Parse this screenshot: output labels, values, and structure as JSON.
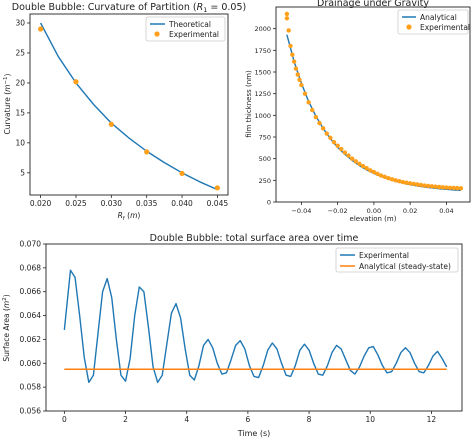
{
  "chart_data": [
    {
      "type": "line",
      "title": "Double Bubble: Curvature of Partition ($R_1$ = 0.05)",
      "xlabel": "R_f (m)",
      "ylabel": "Curvature (m^-1)",
      "xlim": [
        0.0185,
        0.0465
      ],
      "ylim": [
        1.3,
        31.5
      ],
      "xticks": [
        "0.020",
        "0.025",
        "0.030",
        "0.035",
        "0.040",
        "0.045"
      ],
      "yticks": [
        "5",
        "10",
        "15",
        "20",
        "25",
        "30"
      ],
      "legend_position": "top-right",
      "series": [
        {
          "name": "Theoretical",
          "kind": "line",
          "color": "#1f77b4",
          "x": [
            0.02,
            0.0225,
            0.025,
            0.0275,
            0.03,
            0.0325,
            0.035,
            0.0375,
            0.04,
            0.0425,
            0.045
          ],
          "y": [
            30.0,
            24.4,
            20.0,
            16.4,
            13.3,
            10.8,
            8.6,
            6.7,
            5.0,
            3.5,
            2.2
          ]
        },
        {
          "name": "Experimental",
          "kind": "scatter",
          "color": "#ff9f1a",
          "x": [
            0.02,
            0.025,
            0.03,
            0.035,
            0.04,
            0.045
          ],
          "y": [
            29.0,
            20.2,
            13.1,
            8.5,
            4.9,
            2.5
          ]
        }
      ]
    },
    {
      "type": "scatter",
      "title": "Drainage under Gravity",
      "xlabel": "elevation (m)",
      "ylabel": "film thickness (nm)",
      "xlim": [
        -0.054,
        0.053
      ],
      "ylim": [
        0,
        2250
      ],
      "xticks": [
        "-0.04",
        "-0.02",
        "0.00",
        "0.02",
        "0.04"
      ],
      "yticks": [
        "0",
        "250",
        "500",
        "750",
        "1000",
        "1250",
        "1500",
        "1750",
        "2000"
      ],
      "legend_position": "top-right",
      "series": [
        {
          "name": "Analytical",
          "kind": "line",
          "color": "#1f77b4",
          "x": [
            -0.048,
            -0.044,
            -0.04,
            -0.036,
            -0.032,
            -0.028,
            -0.024,
            -0.02,
            -0.016,
            -0.012,
            -0.008,
            -0.004,
            0.0,
            0.004,
            0.008,
            0.012,
            0.016,
            0.02,
            0.024,
            0.028,
            0.032,
            0.036,
            0.04,
            0.044,
            0.048
          ],
          "y": [
            1930,
            1620,
            1370,
            1160,
            990,
            850,
            730,
            630,
            550,
            480,
            420,
            370,
            330,
            295,
            265,
            240,
            218,
            200,
            185,
            172,
            162,
            153,
            146,
            140,
            135
          ]
        },
        {
          "name": "Experimental",
          "kind": "scatter",
          "color": "#ff9f1a",
          "x": [
            -0.048,
            -0.048,
            -0.047,
            -0.046,
            -0.045,
            -0.044,
            -0.043,
            -0.042,
            -0.041,
            -0.04,
            -0.038,
            -0.036,
            -0.034,
            -0.032,
            -0.03,
            -0.028,
            -0.026,
            -0.024,
            -0.022,
            -0.02,
            -0.018,
            -0.016,
            -0.014,
            -0.012,
            -0.01,
            -0.008,
            -0.006,
            -0.004,
            -0.002,
            0.0,
            0.002,
            0.004,
            0.006,
            0.008,
            0.01,
            0.012,
            0.014,
            0.016,
            0.018,
            0.02,
            0.022,
            0.024,
            0.026,
            0.028,
            0.03,
            0.032,
            0.034,
            0.036,
            0.038,
            0.04,
            0.042,
            0.044,
            0.046,
            0.048
          ],
          "y": [
            2170,
            2120,
            1980,
            1800,
            1700,
            1620,
            1540,
            1470,
            1410,
            1350,
            1250,
            1150,
            1060,
            980,
            910,
            850,
            790,
            740,
            690,
            650,
            610,
            570,
            535,
            500,
            470,
            440,
            415,
            390,
            365,
            345,
            325,
            305,
            290,
            275,
            262,
            250,
            240,
            230,
            222,
            215,
            208,
            202,
            196,
            190,
            185,
            181,
            177,
            173,
            170,
            167,
            164,
            162,
            160,
            158
          ]
        }
      ]
    },
    {
      "type": "line",
      "title": "Double Bubble: total surface area over time",
      "xlabel": "Time (s)",
      "ylabel": "Surface Area (m^2)",
      "xlim": [
        -0.6,
        13.0
      ],
      "ylim": [
        0.056,
        0.07
      ],
      "xticks": [
        "0",
        "2",
        "4",
        "6",
        "8",
        "10",
        "12"
      ],
      "yticks": [
        "0.056",
        "0.058",
        "0.060",
        "0.062",
        "0.064",
        "0.066",
        "0.068",
        "0.070"
      ],
      "legend_position": "top-right",
      "series": [
        {
          "name": "Experimental",
          "kind": "line",
          "color": "#1f77b4",
          "x": [
            0.0,
            0.2,
            0.35,
            0.5,
            0.65,
            0.8,
            0.95,
            1.1,
            1.25,
            1.4,
            1.55,
            1.7,
            1.85,
            2.0,
            2.15,
            2.3,
            2.45,
            2.6,
            2.75,
            2.9,
            3.05,
            3.2,
            3.35,
            3.5,
            3.65,
            3.8,
            3.95,
            4.1,
            4.25,
            4.4,
            4.55,
            4.7,
            4.85,
            5.0,
            5.15,
            5.3,
            5.45,
            5.6,
            5.75,
            5.9,
            6.05,
            6.2,
            6.35,
            6.5,
            6.65,
            6.8,
            6.95,
            7.1,
            7.25,
            7.4,
            7.55,
            7.7,
            7.85,
            8.0,
            8.15,
            8.3,
            8.45,
            8.6,
            8.75,
            8.9,
            9.05,
            9.2,
            9.35,
            9.5,
            9.65,
            9.8,
            9.95,
            10.1,
            10.25,
            10.4,
            10.55,
            10.7,
            10.85,
            11.0,
            11.15,
            11.3,
            11.45,
            11.6,
            11.75,
            11.9,
            12.05,
            12.2,
            12.35,
            12.5
          ],
          "y": [
            0.0628,
            0.0678,
            0.0672,
            0.064,
            0.0605,
            0.0584,
            0.059,
            0.0625,
            0.066,
            0.0671,
            0.0655,
            0.062,
            0.059,
            0.0585,
            0.0604,
            0.064,
            0.0664,
            0.066,
            0.063,
            0.0597,
            0.0584,
            0.059,
            0.0616,
            0.0642,
            0.065,
            0.0638,
            0.0612,
            0.059,
            0.0586,
            0.0598,
            0.0615,
            0.062,
            0.0613,
            0.06,
            0.0591,
            0.0592,
            0.0603,
            0.0615,
            0.0619,
            0.0612,
            0.0598,
            0.0589,
            0.0588,
            0.0598,
            0.0611,
            0.0617,
            0.0612,
            0.06,
            0.059,
            0.0589,
            0.0598,
            0.0611,
            0.0616,
            0.0611,
            0.06,
            0.0591,
            0.059,
            0.0598,
            0.0609,
            0.0615,
            0.0612,
            0.0603,
            0.0594,
            0.0591,
            0.0597,
            0.0606,
            0.0613,
            0.0614,
            0.0607,
            0.0598,
            0.0592,
            0.0593,
            0.06,
            0.0609,
            0.0613,
            0.0609,
            0.06,
            0.0593,
            0.0592,
            0.0598,
            0.0606,
            0.061,
            0.0604,
            0.0597
          ]
        },
        {
          "name": "Analytical (steady-state)",
          "kind": "line",
          "color": "#ff7f0e",
          "x": [
            0.0,
            12.5
          ],
          "y": [
            0.0595,
            0.0595
          ]
        }
      ]
    }
  ]
}
